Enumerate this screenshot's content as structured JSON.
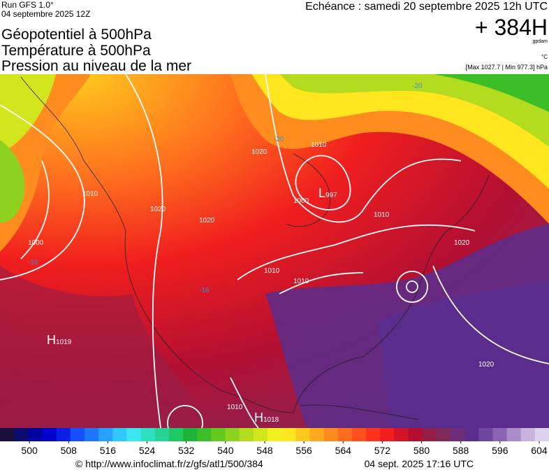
{
  "header": {
    "run": "Run GFS 1.0°",
    "run_date": "04 septembre 2025 12Z",
    "title_lines": [
      "Géopotentiel à 500hPa",
      "Température à 500hPa",
      "Pression au niveau de la mer"
    ],
    "valid": "Echéance : samedi 20 septembre 2025 12h UTC",
    "lead": "+ 384H",
    "unit": "gpdam",
    "temp_unit": "°C",
    "pressure_range": "[Max 1027.7 | Min 977.3] hPa"
  },
  "map": {
    "centers": [
      {
        "letter": "H",
        "value": "1019"
      },
      {
        "letter": "L",
        "value": "997"
      },
      {
        "letter": "H",
        "value": "1018"
      }
    ],
    "isobar_labels": [
      "1010",
      "1000",
      "1020",
      "1020",
      "1020",
      "1010",
      "1000",
      "1010",
      "1010",
      "1010",
      "1020",
      "1020",
      "1010"
    ],
    "temp_labels": [
      "-20",
      "-20",
      "-16",
      "-16"
    ]
  },
  "colorbar": {
    "range": [
      494,
      606
    ],
    "ticks": [
      500,
      508,
      516,
      524,
      532,
      540,
      548,
      556,
      564,
      572,
      580,
      588,
      596,
      604
    ],
    "colors": [
      "#1a0f3a",
      "#0c0c6e",
      "#0000a0",
      "#0000cd",
      "#0a1ee6",
      "#1450ff",
      "#1e78ff",
      "#28a0ff",
      "#30c8ff",
      "#3ce6f0",
      "#2ee0c0",
      "#28d296",
      "#20c864",
      "#1eb43c",
      "#3cbe28",
      "#64c81e",
      "#8cd21e",
      "#b4dc1e",
      "#d2e61e",
      "#f0f01e",
      "#ffe61e",
      "#ffc81e",
      "#ffaa1e",
      "#ff8c1e",
      "#ff6e1e",
      "#ff501e",
      "#ff321e",
      "#f01e1e",
      "#d21428",
      "#b40f32",
      "#961e46",
      "#80285a",
      "#6e2d78",
      "#5a2d8c",
      "#6e46a0",
      "#8c64b4",
      "#aa8cc8",
      "#c8b4dc",
      "#dcd2ec"
    ]
  },
  "footer": {
    "url": "© http://www.infoclimat.fr/z/gfs/atl1/500/384",
    "generated": "04 sept. 2025 17:16 UTC"
  }
}
